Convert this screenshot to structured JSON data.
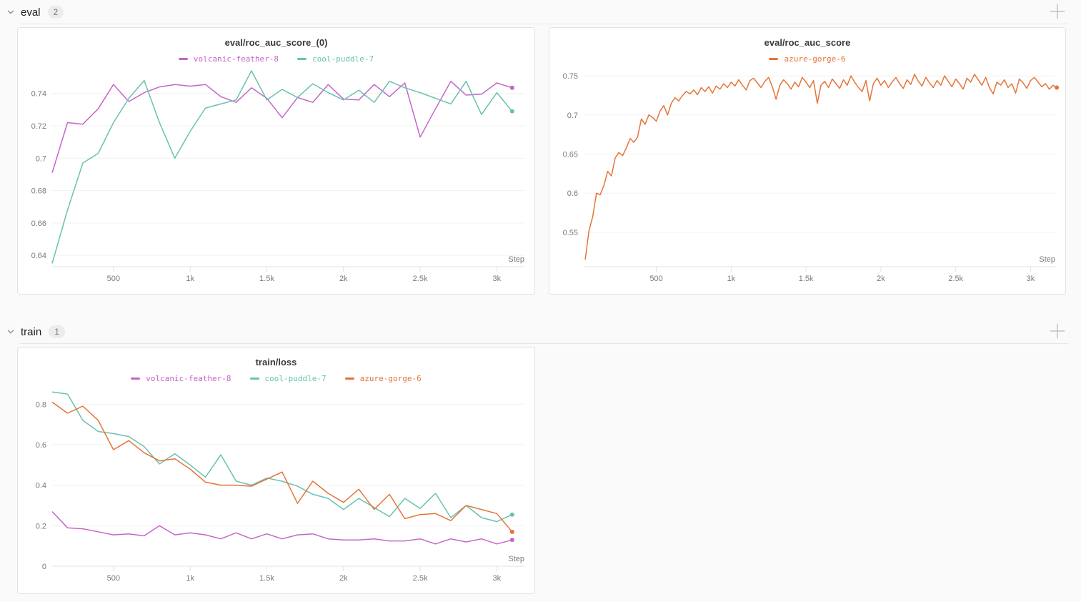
{
  "sections": [
    {
      "title": "eval",
      "count": "2"
    },
    {
      "title": "train",
      "count": "1"
    }
  ],
  "runs": [
    {
      "name": "volcanic-feather-8",
      "color": "#C665C8"
    },
    {
      "name": "cool-puddle-7",
      "color": "#68C2B0"
    },
    {
      "name": "azure-gorge-6",
      "color": "#E57439"
    }
  ],
  "ui_colors": {
    "background": "#FAFAFA",
    "panel": "#FFFFFF",
    "panel_border": "#E2E2E2",
    "grid": "#F0F0F0",
    "axis": "#E2E2E2",
    "tick_text": "#7a7a7a"
  },
  "chart_data": [
    {
      "type": "line",
      "title": "eval/roc_auc_score_(0)",
      "xlabel": "Step",
      "grid": "horizontal",
      "legend_position": "top",
      "xlim": [
        100,
        3180
      ],
      "ylim": [
        0.633,
        0.754
      ],
      "x": {
        "start": 100,
        "step": 100
      },
      "xticks": [
        {
          "v": 500,
          "label": "500"
        },
        {
          "v": 1000,
          "label": "1k"
        },
        {
          "v": 1500,
          "label": "1.5k"
        },
        {
          "v": 2000,
          "label": "2k"
        },
        {
          "v": 2500,
          "label": "2.5k"
        },
        {
          "v": 3000,
          "label": "3k"
        }
      ],
      "yticks": [
        {
          "v": 0.64,
          "label": "0.64"
        },
        {
          "v": 0.66,
          "label": "0.66"
        },
        {
          "v": 0.68,
          "label": "0.68"
        },
        {
          "v": 0.7,
          "label": "0.7"
        },
        {
          "v": 0.72,
          "label": "0.72"
        },
        {
          "v": 0.74,
          "label": "0.74"
        }
      ],
      "series": [
        {
          "name": "volcanic-feather-8",
          "color": "#C665C8",
          "values": [
            0.691,
            0.722,
            0.721,
            0.7305,
            0.7455,
            0.735,
            0.7405,
            0.744,
            0.7455,
            0.7445,
            0.7455,
            0.738,
            0.7345,
            0.7435,
            0.737,
            0.725,
            0.7375,
            0.7345,
            0.7455,
            0.7365,
            0.736,
            0.7455,
            0.738,
            0.7465,
            0.713,
            0.7305,
            0.7475,
            0.739,
            0.7395,
            0.7465,
            0.7435
          ]
        },
        {
          "name": "cool-puddle-7",
          "color": "#68C2B0",
          "values": [
            0.635,
            0.668,
            0.697,
            0.703,
            0.722,
            0.737,
            0.748,
            0.722,
            0.7,
            0.7165,
            0.731,
            0.7335,
            0.736,
            0.754,
            0.736,
            0.7425,
            0.7375,
            0.746,
            0.7405,
            0.736,
            0.742,
            0.7345,
            0.7475,
            0.7435,
            0.7405,
            0.737,
            0.7335,
            0.7475,
            0.727,
            0.7405,
            0.729
          ]
        }
      ]
    },
    {
      "type": "line",
      "title": "eval/roc_auc_score",
      "xlabel": "Step",
      "grid": "horizontal",
      "legend_position": "top",
      "xlim": [
        15,
        3165
      ],
      "ylim": [
        0.506,
        0.7565
      ],
      "x": {
        "start": 25,
        "step": 25
      },
      "xticks": [
        {
          "v": 500,
          "label": "500"
        },
        {
          "v": 1000,
          "label": "1k"
        },
        {
          "v": 1500,
          "label": "1.5k"
        },
        {
          "v": 2000,
          "label": "2k"
        },
        {
          "v": 2500,
          "label": "2.5k"
        },
        {
          "v": 3000,
          "label": "3k"
        }
      ],
      "yticks": [
        {
          "v": 0.55,
          "label": "0.55"
        },
        {
          "v": 0.6,
          "label": "0.6"
        },
        {
          "v": 0.65,
          "label": "0.65"
        },
        {
          "v": 0.7,
          "label": "0.7"
        },
        {
          "v": 0.75,
          "label": "0.75"
        }
      ],
      "series": [
        {
          "name": "azure-gorge-6",
          "color": "#E57439",
          "values": [
            0.515,
            0.552,
            0.57,
            0.6,
            0.598,
            0.61,
            0.628,
            0.622,
            0.645,
            0.652,
            0.648,
            0.658,
            0.67,
            0.665,
            0.672,
            0.695,
            0.688,
            0.7,
            0.697,
            0.692,
            0.705,
            0.712,
            0.7,
            0.715,
            0.722,
            0.718,
            0.725,
            0.73,
            0.727,
            0.732,
            0.726,
            0.735,
            0.73,
            0.736,
            0.728,
            0.737,
            0.733,
            0.74,
            0.735,
            0.742,
            0.737,
            0.745,
            0.738,
            0.732,
            0.744,
            0.747,
            0.741,
            0.735,
            0.743,
            0.748,
            0.736,
            0.72,
            0.738,
            0.745,
            0.74,
            0.733,
            0.742,
            0.736,
            0.748,
            0.742,
            0.735,
            0.744,
            0.715,
            0.738,
            0.743,
            0.735,
            0.746,
            0.74,
            0.734,
            0.745,
            0.738,
            0.75,
            0.742,
            0.735,
            0.73,
            0.744,
            0.718,
            0.74,
            0.747,
            0.738,
            0.744,
            0.735,
            0.742,
            0.748,
            0.74,
            0.734,
            0.745,
            0.739,
            0.752,
            0.743,
            0.737,
            0.748,
            0.741,
            0.735,
            0.744,
            0.738,
            0.75,
            0.743,
            0.736,
            0.746,
            0.74,
            0.733,
            0.747,
            0.742,
            0.752,
            0.745,
            0.738,
            0.748,
            0.735,
            0.727,
            0.742,
            0.738,
            0.745,
            0.735,
            0.74,
            0.728,
            0.746,
            0.741,
            0.734,
            0.744,
            0.748,
            0.742,
            0.736,
            0.74,
            0.733,
            0.738,
            0.735
          ]
        }
      ]
    },
    {
      "type": "line",
      "title": "train/loss",
      "xlabel": "Step",
      "grid": "horizontal",
      "legend_position": "top",
      "xlim": [
        100,
        3180
      ],
      "ylim": [
        0,
        0.868
      ],
      "x": {
        "start": 100,
        "step": 100
      },
      "xticks": [
        {
          "v": 500,
          "label": "500"
        },
        {
          "v": 1000,
          "label": "1k"
        },
        {
          "v": 1500,
          "label": "1.5k"
        },
        {
          "v": 2000,
          "label": "2k"
        },
        {
          "v": 2500,
          "label": "2.5k"
        },
        {
          "v": 3000,
          "label": "3k"
        }
      ],
      "yticks": [
        {
          "v": 0,
          "label": "0"
        },
        {
          "v": 0.2,
          "label": "0.2"
        },
        {
          "v": 0.4,
          "label": "0.4"
        },
        {
          "v": 0.6,
          "label": "0.6"
        },
        {
          "v": 0.8,
          "label": "0.8"
        }
      ],
      "series": [
        {
          "name": "volcanic-feather-8",
          "color": "#C665C8",
          "values": [
            0.27,
            0.19,
            0.185,
            0.17,
            0.155,
            0.16,
            0.15,
            0.2,
            0.155,
            0.165,
            0.155,
            0.135,
            0.165,
            0.135,
            0.16,
            0.135,
            0.155,
            0.16,
            0.135,
            0.13,
            0.13,
            0.135,
            0.125,
            0.125,
            0.135,
            0.11,
            0.135,
            0.12,
            0.135,
            0.11,
            0.13
          ]
        },
        {
          "name": "cool-puddle-7",
          "color": "#68C2B0",
          "values": [
            0.86,
            0.85,
            0.72,
            0.665,
            0.655,
            0.64,
            0.59,
            0.505,
            0.555,
            0.5,
            0.44,
            0.55,
            0.42,
            0.4,
            0.435,
            0.42,
            0.395,
            0.355,
            0.335,
            0.28,
            0.335,
            0.29,
            0.245,
            0.335,
            0.285,
            0.36,
            0.24,
            0.3,
            0.24,
            0.22,
            0.255
          ]
        },
        {
          "name": "azure-gorge-6",
          "color": "#E57439",
          "values": [
            0.81,
            0.755,
            0.79,
            0.72,
            0.575,
            0.62,
            0.56,
            0.52,
            0.53,
            0.48,
            0.415,
            0.4,
            0.4,
            0.395,
            0.43,
            0.465,
            0.31,
            0.42,
            0.36,
            0.315,
            0.38,
            0.28,
            0.355,
            0.235,
            0.255,
            0.26,
            0.225,
            0.3,
            0.28,
            0.26,
            0.17
          ]
        }
      ]
    }
  ]
}
